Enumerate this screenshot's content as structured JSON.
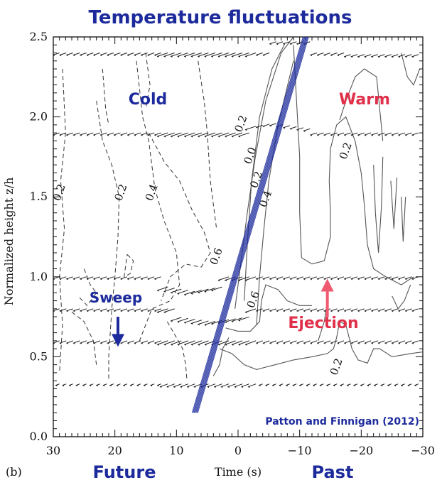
{
  "chart_data": {
    "type": "contour",
    "title": "Temperature fluctuations",
    "panel_label": "(b)",
    "xlabel": "Time (s)",
    "ylabel": "Normalized height z/h",
    "xlim": [
      30,
      -30
    ],
    "ylim": [
      0.0,
      2.5
    ],
    "x_ticks": [
      30,
      20,
      10,
      0,
      -10,
      -20,
      -30
    ],
    "y_ticks": [
      0.0,
      0.5,
      1.0,
      1.5,
      2.0,
      2.5
    ],
    "x_tick_labels": [
      "30",
      "20",
      "10",
      "0",
      "−10",
      "−20",
      "−30"
    ],
    "y_tick_labels": [
      "0.0",
      "0.5",
      "1.0",
      "1.5",
      "2.0",
      "2.5"
    ],
    "grid": false,
    "region_labels": [
      {
        "text": "Cold",
        "color": "#1c2a9c"
      },
      {
        "text": "Warm",
        "color": "#e0304a"
      },
      {
        "text": "Sweep",
        "color": "#1c2a9c"
      },
      {
        "text": "Ejection",
        "color": "#e0304a"
      }
    ],
    "bottom_labels": [
      {
        "text": "Future",
        "color": "#1c2a9c"
      },
      {
        "text": "Past",
        "color": "#1c2a9c"
      }
    ],
    "credit": "Patton and Finnigan (2012)",
    "contour_labels": [
      {
        "text": "0.2",
        "x": 28.5,
        "y": 1.52
      },
      {
        "text": "0.2",
        "x": 18.5,
        "y": 1.52
      },
      {
        "text": "0.4",
        "x": 13.5,
        "y": 1.52
      },
      {
        "text": "0.6",
        "x": 3.0,
        "y": 1.12
      },
      {
        "text": "0.2",
        "x": -1.0,
        "y": 1.95
      },
      {
        "text": "0.0",
        "x": -2.5,
        "y": 1.75
      },
      {
        "text": "0.2",
        "x": -3.5,
        "y": 1.6
      },
      {
        "text": "0.4",
        "x": -5.0,
        "y": 1.48
      },
      {
        "text": "0.6",
        "x": -3.0,
        "y": 0.85
      },
      {
        "text": "0.2",
        "x": -18.0,
        "y": 1.78
      },
      {
        "text": "0.2",
        "x": -16.5,
        "y": 0.43
      }
    ],
    "wind_vector_rows": [
      2.4,
      1.9,
      1.0,
      0.8,
      0.6,
      0.33
    ],
    "tilt_line": {
      "x_start": 7.0,
      "y_start": 0.15,
      "x_end": -11.0,
      "y_end": 2.5,
      "color": "#1c2a9c"
    },
    "sweep_arrow": {
      "x": 19.5,
      "y_from": 0.75,
      "y_to": 0.58,
      "color": "#1c2a9c"
    },
    "ejection_arrow": {
      "x": -14.5,
      "y_from": 0.75,
      "y_to": 0.97,
      "color": "#f05a70"
    }
  }
}
